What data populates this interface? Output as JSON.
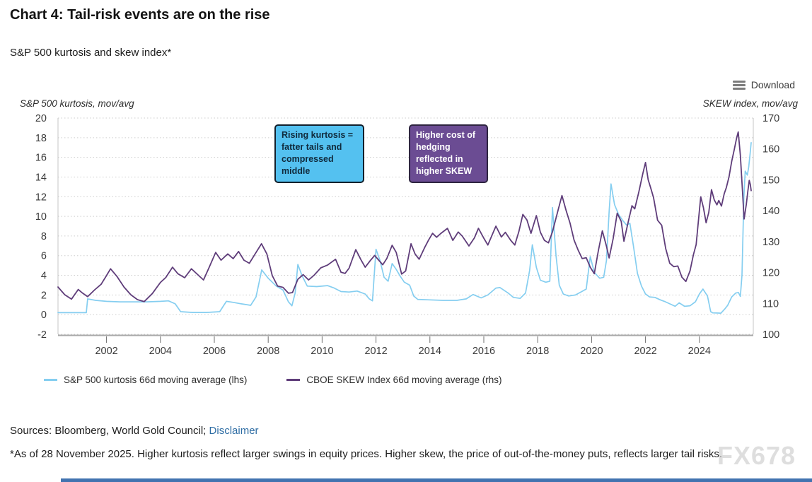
{
  "page": {
    "title": "Chart 4: Tail-risk events are on the rise",
    "subtitle": "S&P 500 kurtosis and skew index*",
    "download_label": "Download",
    "sources_prefix": "Sources: Bloomberg, World Gold Council;",
    "disclaimer_link": "Disclaimer",
    "footnote": "*As of 28 November 2025. Higher kurtosis reflect larger swings in equity prices. Higher skew, the price of out-of-the-money puts, reflects larger tail risks.",
    "watermark": "FX678"
  },
  "colors": {
    "link": "#2E6DA4",
    "bottom_bar": "#4273B0",
    "grid": "#cdcdcd",
    "plot_border": "#c4c4c4",
    "axis_line": "#a8a8a8",
    "tick": "#6e6e6e",
    "tick_text": "#3b3b3b"
  },
  "chart_data": {
    "type": "line",
    "title": "S&P 500 kurtosis and skew index*",
    "grid": "horizontal-dotted",
    "legend_position": "bottom-left",
    "x_axis": {
      "range": [
        2000.2,
        2026.0
      ],
      "ticks": [
        2002,
        2004,
        2006,
        2008,
        2010,
        2012,
        2014,
        2016,
        2018,
        2020,
        2022,
        2024
      ]
    },
    "y_left": {
      "label": "S&P 500 kurtosis, mov/avg",
      "range": [
        -2,
        20
      ],
      "ticks": [
        20,
        18,
        16,
        14,
        12,
        10,
        8,
        6,
        4,
        2,
        0,
        -2
      ]
    },
    "y_right": {
      "label": "SKEW index, mov/avg",
      "range": [
        100,
        170
      ],
      "ticks": [
        170,
        160,
        150,
        140,
        130,
        120,
        110,
        100
      ]
    },
    "annotations": [
      {
        "text": "Rising kurtosis = fatter tails and compressed middle",
        "bg": "#54C1F0",
        "border": "#13202C",
        "text_color": "#102A3C"
      },
      {
        "text": "Higher cost of hedging reflected in higher SKEW",
        "bg": "#6B4C93",
        "border": "#2E2540",
        "text_color": "#FFFFFF"
      }
    ],
    "series": [
      {
        "name": "S&P 500 kurtosis 66d moving average (lhs)",
        "axis": "left",
        "color": "#85CEF0",
        "points": [
          [
            2000.2,
            0.2
          ],
          [
            2001.25,
            0.2
          ],
          [
            2001.3,
            1.6
          ],
          [
            2001.6,
            1.45
          ],
          [
            2002.0,
            1.35
          ],
          [
            2002.5,
            1.3
          ],
          [
            2003.0,
            1.3
          ],
          [
            2003.5,
            1.3
          ],
          [
            2004.0,
            1.35
          ],
          [
            2004.3,
            1.4
          ],
          [
            2004.55,
            1.1
          ],
          [
            2004.75,
            0.3
          ],
          [
            2005.2,
            0.22
          ],
          [
            2005.7,
            0.22
          ],
          [
            2006.2,
            0.3
          ],
          [
            2006.45,
            1.35
          ],
          [
            2006.7,
            1.25
          ],
          [
            2007.0,
            1.1
          ],
          [
            2007.35,
            0.95
          ],
          [
            2007.55,
            1.8
          ],
          [
            2007.76,
            4.55
          ],
          [
            2008.0,
            3.7
          ],
          [
            2008.3,
            2.9
          ],
          [
            2008.55,
            2.5
          ],
          [
            2008.75,
            1.3
          ],
          [
            2008.88,
            0.9
          ],
          [
            2009.0,
            2.2
          ],
          [
            2009.1,
            5.1
          ],
          [
            2009.25,
            4.0
          ],
          [
            2009.45,
            2.9
          ],
          [
            2009.8,
            2.85
          ],
          [
            2010.2,
            2.95
          ],
          [
            2010.45,
            2.7
          ],
          [
            2010.7,
            2.35
          ],
          [
            2011.0,
            2.3
          ],
          [
            2011.3,
            2.4
          ],
          [
            2011.6,
            2.1
          ],
          [
            2011.75,
            1.6
          ],
          [
            2011.87,
            1.4
          ],
          [
            2012.0,
            6.65
          ],
          [
            2012.15,
            5.5
          ],
          [
            2012.3,
            3.8
          ],
          [
            2012.45,
            3.4
          ],
          [
            2012.6,
            5.2
          ],
          [
            2012.75,
            4.6
          ],
          [
            2012.9,
            3.9
          ],
          [
            2013.05,
            3.3
          ],
          [
            2013.25,
            3.0
          ],
          [
            2013.4,
            1.9
          ],
          [
            2013.55,
            1.55
          ],
          [
            2014.0,
            1.5
          ],
          [
            2014.5,
            1.45
          ],
          [
            2015.0,
            1.45
          ],
          [
            2015.35,
            1.6
          ],
          [
            2015.6,
            2.05
          ],
          [
            2015.9,
            1.7
          ],
          [
            2016.15,
            2.0
          ],
          [
            2016.45,
            2.7
          ],
          [
            2016.6,
            2.75
          ],
          [
            2016.9,
            2.2
          ],
          [
            2017.1,
            1.75
          ],
          [
            2017.35,
            1.65
          ],
          [
            2017.55,
            2.2
          ],
          [
            2017.7,
            4.5
          ],
          [
            2017.8,
            7.1
          ],
          [
            2017.95,
            4.8
          ],
          [
            2018.1,
            3.5
          ],
          [
            2018.3,
            3.3
          ],
          [
            2018.45,
            3.4
          ],
          [
            2018.55,
            10.9
          ],
          [
            2018.68,
            6.0
          ],
          [
            2018.8,
            3.0
          ],
          [
            2018.95,
            2.1
          ],
          [
            2019.15,
            1.9
          ],
          [
            2019.4,
            2.0
          ],
          [
            2019.6,
            2.3
          ],
          [
            2019.8,
            2.6
          ],
          [
            2019.95,
            5.9
          ],
          [
            2020.1,
            4.3
          ],
          [
            2020.3,
            3.7
          ],
          [
            2020.45,
            3.8
          ],
          [
            2020.55,
            5.5
          ],
          [
            2020.65,
            10.5
          ],
          [
            2020.72,
            13.3
          ],
          [
            2020.85,
            11.2
          ],
          [
            2021.0,
            10.2
          ],
          [
            2021.15,
            9.6
          ],
          [
            2021.3,
            9.1
          ],
          [
            2021.42,
            9.3
          ],
          [
            2021.55,
            7.0
          ],
          [
            2021.7,
            4.2
          ],
          [
            2021.85,
            2.9
          ],
          [
            2022.0,
            2.1
          ],
          [
            2022.15,
            1.8
          ],
          [
            2022.35,
            1.75
          ],
          [
            2022.55,
            1.5
          ],
          [
            2022.7,
            1.35
          ],
          [
            2022.9,
            1.1
          ],
          [
            2023.1,
            0.85
          ],
          [
            2023.25,
            1.2
          ],
          [
            2023.45,
            0.85
          ],
          [
            2023.65,
            0.9
          ],
          [
            2023.85,
            1.3
          ],
          [
            2024.0,
            2.1
          ],
          [
            2024.13,
            2.6
          ],
          [
            2024.3,
            1.9
          ],
          [
            2024.42,
            0.3
          ],
          [
            2024.5,
            0.18
          ],
          [
            2024.8,
            0.15
          ],
          [
            2024.95,
            0.6
          ],
          [
            2025.05,
            0.95
          ],
          [
            2025.2,
            1.8
          ],
          [
            2025.35,
            2.2
          ],
          [
            2025.45,
            2.25
          ],
          [
            2025.52,
            1.85
          ],
          [
            2025.58,
            4.0
          ],
          [
            2025.65,
            12.0
          ],
          [
            2025.7,
            14.6
          ],
          [
            2025.78,
            14.2
          ],
          [
            2025.83,
            15.0
          ],
          [
            2025.88,
            16.3
          ],
          [
            2025.92,
            17.5
          ]
        ]
      },
      {
        "name": "CBOE SKEW Index 66d moving average (rhs)",
        "axis": "right",
        "color": "#5F3D7A",
        "points": [
          [
            2000.2,
            115.3
          ],
          [
            2000.45,
            112.8
          ],
          [
            2000.7,
            111.4
          ],
          [
            2000.95,
            114.5
          ],
          [
            2001.1,
            113.4
          ],
          [
            2001.3,
            112.2
          ],
          [
            2001.55,
            114.3
          ],
          [
            2001.8,
            116.2
          ],
          [
            2002.0,
            119.0
          ],
          [
            2002.15,
            121.2
          ],
          [
            2002.4,
            118.6
          ],
          [
            2002.65,
            115.3
          ],
          [
            2002.9,
            112.8
          ],
          [
            2003.15,
            111.2
          ],
          [
            2003.4,
            110.6
          ],
          [
            2003.7,
            113.2
          ],
          [
            2004.0,
            116.8
          ],
          [
            2004.2,
            118.4
          ],
          [
            2004.45,
            121.7
          ],
          [
            2004.65,
            119.6
          ],
          [
            2004.9,
            118.3
          ],
          [
            2005.15,
            121.2
          ],
          [
            2005.4,
            119.2
          ],
          [
            2005.6,
            117.6
          ],
          [
            2005.8,
            121.5
          ],
          [
            2006.05,
            126.5
          ],
          [
            2006.25,
            124.0
          ],
          [
            2006.5,
            126.0
          ],
          [
            2006.7,
            124.5
          ],
          [
            2006.9,
            126.8
          ],
          [
            2007.1,
            124.0
          ],
          [
            2007.3,
            123.0
          ],
          [
            2007.55,
            126.5
          ],
          [
            2007.75,
            129.3
          ],
          [
            2007.95,
            126.0
          ],
          [
            2008.15,
            119.0
          ],
          [
            2008.35,
            115.6
          ],
          [
            2008.55,
            115.2
          ],
          [
            2008.75,
            113.3
          ],
          [
            2008.9,
            113.5
          ],
          [
            2009.1,
            117.8
          ],
          [
            2009.3,
            119.3
          ],
          [
            2009.5,
            117.6
          ],
          [
            2009.7,
            119.1
          ],
          [
            2009.95,
            121.5
          ],
          [
            2010.2,
            122.4
          ],
          [
            2010.5,
            124.3
          ],
          [
            2010.7,
            120.1
          ],
          [
            2010.85,
            119.7
          ],
          [
            2011.0,
            121.4
          ],
          [
            2011.25,
            127.4
          ],
          [
            2011.45,
            124.0
          ],
          [
            2011.6,
            121.7
          ],
          [
            2011.8,
            124.0
          ],
          [
            2011.95,
            125.5
          ],
          [
            2012.1,
            124.0
          ],
          [
            2012.25,
            122.5
          ],
          [
            2012.4,
            124.5
          ],
          [
            2012.6,
            128.8
          ],
          [
            2012.75,
            126.5
          ],
          [
            2012.95,
            119.5
          ],
          [
            2013.1,
            120.5
          ],
          [
            2013.3,
            129.3
          ],
          [
            2013.45,
            126.0
          ],
          [
            2013.6,
            124.3
          ],
          [
            2013.8,
            128.0
          ],
          [
            2013.95,
            130.5
          ],
          [
            2014.1,
            132.7
          ],
          [
            2014.25,
            131.4
          ],
          [
            2014.4,
            132.6
          ],
          [
            2014.65,
            134.3
          ],
          [
            2014.85,
            130.4
          ],
          [
            2015.05,
            133.1
          ],
          [
            2015.2,
            131.8
          ],
          [
            2015.45,
            128.6
          ],
          [
            2015.65,
            131.2
          ],
          [
            2015.8,
            134.3
          ],
          [
            2016.0,
            131.1
          ],
          [
            2016.15,
            128.9
          ],
          [
            2016.45,
            135.0
          ],
          [
            2016.65,
            131.5
          ],
          [
            2016.8,
            133.0
          ],
          [
            2017.0,
            130.4
          ],
          [
            2017.15,
            128.9
          ],
          [
            2017.3,
            133.2
          ],
          [
            2017.45,
            138.8
          ],
          [
            2017.6,
            137.0
          ],
          [
            2017.75,
            132.7
          ],
          [
            2017.95,
            138.4
          ],
          [
            2018.1,
            133.0
          ],
          [
            2018.25,
            130.4
          ],
          [
            2018.4,
            129.6
          ],
          [
            2018.55,
            133.2
          ],
          [
            2018.75,
            140.0
          ],
          [
            2018.9,
            144.9
          ],
          [
            2019.05,
            140.2
          ],
          [
            2019.2,
            136.0
          ],
          [
            2019.35,
            130.5
          ],
          [
            2019.5,
            127.3
          ],
          [
            2019.65,
            124.5
          ],
          [
            2019.8,
            124.8
          ],
          [
            2019.95,
            121.7
          ],
          [
            2020.1,
            119.6
          ],
          [
            2020.25,
            127.0
          ],
          [
            2020.4,
            133.5
          ],
          [
            2020.55,
            128.5
          ],
          [
            2020.65,
            124.7
          ],
          [
            2020.8,
            131.0
          ],
          [
            2020.95,
            139.2
          ],
          [
            2021.1,
            136.5
          ],
          [
            2021.2,
            130.1
          ],
          [
            2021.35,
            136.0
          ],
          [
            2021.5,
            141.6
          ],
          [
            2021.6,
            140.6
          ],
          [
            2021.75,
            146.0
          ],
          [
            2021.9,
            152.0
          ],
          [
            2022.0,
            155.6
          ],
          [
            2022.1,
            150.0
          ],
          [
            2022.2,
            147.2
          ],
          [
            2022.3,
            144.2
          ],
          [
            2022.45,
            136.9
          ],
          [
            2022.6,
            135.3
          ],
          [
            2022.75,
            127.7
          ],
          [
            2022.9,
            123.0
          ],
          [
            2023.05,
            121.9
          ],
          [
            2023.2,
            122.1
          ],
          [
            2023.35,
            118.5
          ],
          [
            2023.5,
            117.1
          ],
          [
            2023.65,
            120.5
          ],
          [
            2023.78,
            125.8
          ],
          [
            2023.88,
            129.0
          ],
          [
            2024.0,
            140.0
          ],
          [
            2024.05,
            144.5
          ],
          [
            2024.15,
            141.0
          ],
          [
            2024.25,
            136.1
          ],
          [
            2024.35,
            139.5
          ],
          [
            2024.45,
            146.8
          ],
          [
            2024.55,
            143.5
          ],
          [
            2024.65,
            141.9
          ],
          [
            2024.72,
            143.3
          ],
          [
            2024.82,
            141.5
          ],
          [
            2024.92,
            145.5
          ],
          [
            2025.0,
            147.5
          ],
          [
            2025.1,
            151.0
          ],
          [
            2025.2,
            156.0
          ],
          [
            2025.3,
            160.0
          ],
          [
            2025.38,
            163.5
          ],
          [
            2025.44,
            165.5
          ],
          [
            2025.52,
            158.0
          ],
          [
            2025.6,
            146.0
          ],
          [
            2025.66,
            137.3
          ],
          [
            2025.74,
            142.0
          ],
          [
            2025.8,
            146.5
          ],
          [
            2025.85,
            149.8
          ],
          [
            2025.89,
            148.5
          ],
          [
            2025.92,
            146.5
          ]
        ]
      }
    ]
  }
}
